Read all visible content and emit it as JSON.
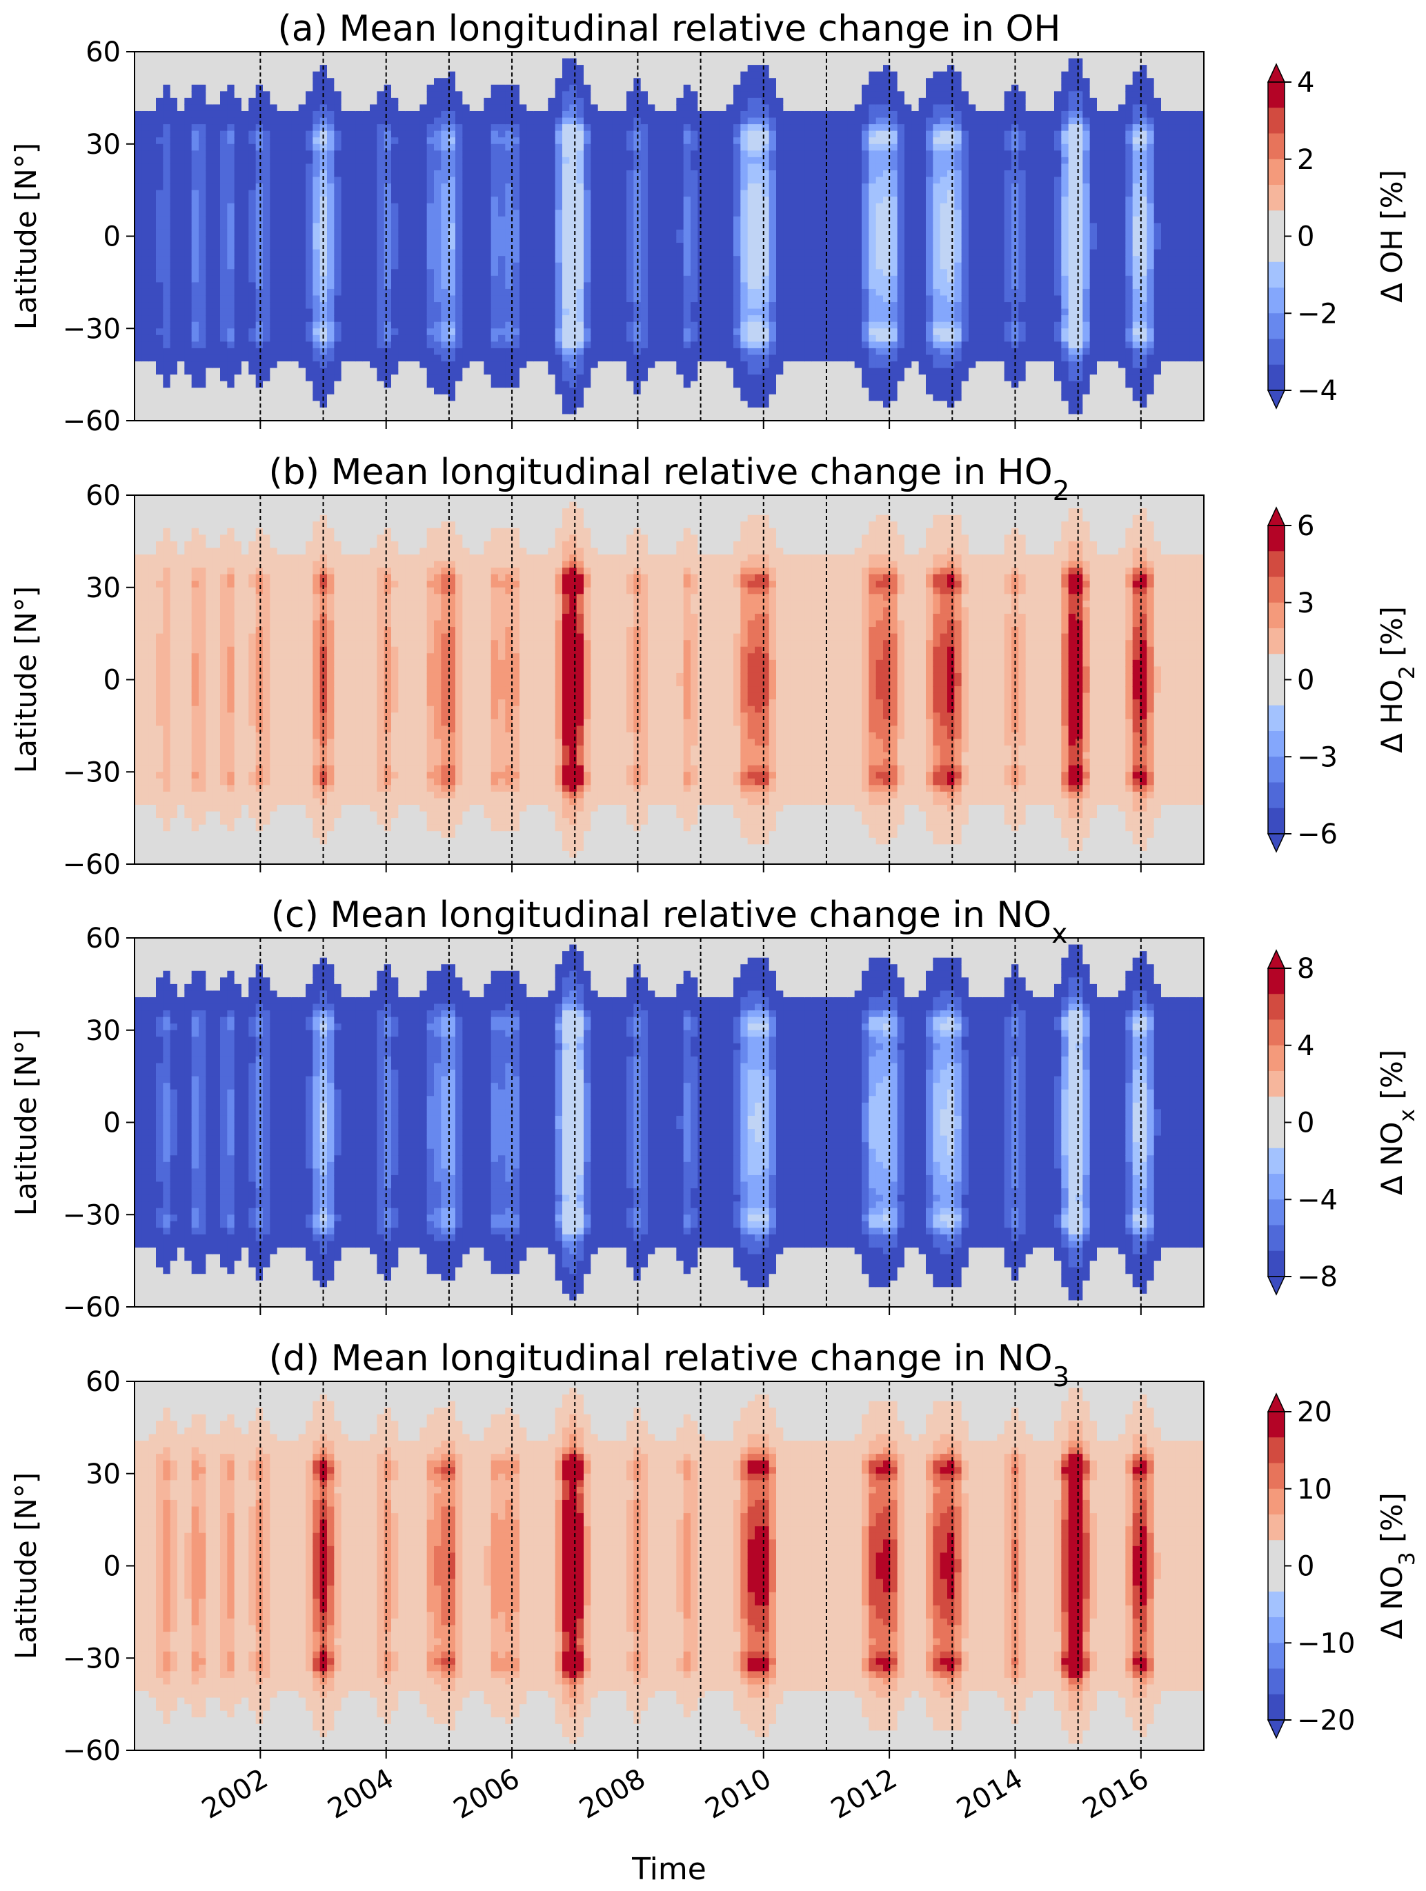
{
  "figure": {
    "xlabel": "Time",
    "x_tick_labels": [
      "2002",
      "2004",
      "2006",
      "2008",
      "2010",
      "2012",
      "2014",
      "2016"
    ],
    "x_tick_values": [
      2002,
      2004,
      2006,
      2008,
      2010,
      2012,
      2014,
      2016
    ],
    "x_range": [
      2000.0,
      2017.0
    ],
    "dashed_line_years": [
      2002,
      2003,
      2004,
      2005,
      2006,
      2007,
      2008,
      2009,
      2010,
      2011,
      2012,
      2013,
      2014,
      2015,
      2016
    ],
    "background_color": "#dcdcdc"
  },
  "chart_data": [
    {
      "type": "heatmap",
      "panel": "a",
      "title_main": "(a) Mean longitudinal relative change in OH",
      "title_sub": "",
      "ylabel": "Latitude [N°]",
      "y_ticks": [
        60,
        30,
        0,
        -30,
        -60
      ],
      "y_tick_labels": [
        "60",
        "30",
        "0",
        "−30",
        "−60"
      ],
      "ylim": [
        -60,
        60
      ],
      "colorbar": {
        "label_main": "Δ OH [%]",
        "label_sub": "",
        "range": [
          -4,
          4
        ],
        "ticks": [
          4,
          2,
          0,
          -2,
          -4
        ],
        "tick_labels": [
          "4",
          "2",
          "0",
          "−2",
          "−4"
        ],
        "extend": "both"
      },
      "sign": -1,
      "peak_value": -4,
      "event_years": [
        2000.5,
        2001.0,
        2001.5,
        2002.0,
        2003.0,
        2004.0,
        2004.75,
        2005.0,
        2005.75,
        2006.0,
        2006.9,
        2007.0,
        2008.0,
        2008.8,
        2009.75,
        2010.0,
        2011.75,
        2012.0,
        2012.75,
        2013.0,
        2014.0,
        2014.9,
        2015.0,
        2016.0
      ],
      "event_strength": [
        0.3,
        0.4,
        0.35,
        0.4,
        0.95,
        0.4,
        0.35,
        0.7,
        0.35,
        0.4,
        0.85,
        1.0,
        0.45,
        0.35,
        0.85,
        0.9,
        0.75,
        0.85,
        0.7,
        0.9,
        0.4,
        0.85,
        0.85,
        1.0
      ]
    },
    {
      "type": "heatmap",
      "panel": "b",
      "title_main": "(b) Mean longitudinal relative change in HO",
      "title_sub": "2",
      "ylabel": "Latitude [N°]",
      "y_ticks": [
        60,
        30,
        0,
        -30,
        -60
      ],
      "y_tick_labels": [
        "60",
        "30",
        "0",
        "−30",
        "−60"
      ],
      "ylim": [
        -60,
        60
      ],
      "colorbar": {
        "label_main": "Δ HO",
        "label_sub": "2",
        "label_tail": " [%]",
        "range": [
          -6,
          6
        ],
        "ticks": [
          6,
          3,
          0,
          -3,
          -6
        ],
        "tick_labels": [
          "6",
          "3",
          "0",
          "−3",
          "−6"
        ],
        "extend": "both"
      },
      "sign": 1,
      "peak_value": 6,
      "event_years": [
        2000.5,
        2001.0,
        2001.5,
        2002.0,
        2003.0,
        2004.0,
        2004.75,
        2005.0,
        2005.75,
        2006.0,
        2006.9,
        2007.0,
        2008.0,
        2008.8,
        2009.75,
        2010.0,
        2011.75,
        2012.0,
        2012.75,
        2013.0,
        2014.0,
        2014.9,
        2015.0,
        2016.0
      ],
      "event_strength": [
        0.3,
        0.35,
        0.35,
        0.4,
        0.7,
        0.4,
        0.35,
        0.65,
        0.35,
        0.4,
        0.7,
        1.0,
        0.4,
        0.35,
        0.6,
        0.7,
        0.6,
        0.7,
        0.6,
        0.85,
        0.4,
        0.7,
        0.75,
        1.0
      ]
    },
    {
      "type": "heatmap",
      "panel": "c",
      "title_main": "(c) Mean longitudinal relative change in NO",
      "title_sub": "x",
      "ylabel": "Latitude [N°]",
      "y_ticks": [
        60,
        30,
        0,
        -30,
        -60
      ],
      "y_tick_labels": [
        "60",
        "30",
        "0",
        "−30",
        "−60"
      ],
      "ylim": [
        -60,
        60
      ],
      "colorbar": {
        "label_main": "Δ NO",
        "label_sub": "x",
        "label_tail": " [%]",
        "range": [
          -8,
          8
        ],
        "ticks": [
          8,
          4,
          0,
          -4,
          -8
        ],
        "tick_labels": [
          "8",
          "4",
          "0",
          "−4",
          "−8"
        ],
        "extend": "both"
      },
      "sign": -1,
      "peak_value": -8,
      "event_years": [
        2000.5,
        2001.0,
        2001.5,
        2002.0,
        2003.0,
        2004.0,
        2004.75,
        2005.0,
        2005.75,
        2006.0,
        2006.9,
        2007.0,
        2008.0,
        2008.8,
        2009.75,
        2010.0,
        2011.75,
        2012.0,
        2012.75,
        2013.0,
        2014.0,
        2014.9,
        2015.0,
        2016.0
      ],
      "event_strength": [
        0.35,
        0.4,
        0.35,
        0.45,
        0.85,
        0.45,
        0.35,
        0.65,
        0.35,
        0.45,
        0.8,
        1.0,
        0.45,
        0.35,
        0.7,
        0.8,
        0.65,
        0.75,
        0.65,
        0.85,
        0.45,
        0.8,
        0.85,
        1.0
      ]
    },
    {
      "type": "heatmap",
      "panel": "d",
      "title_main": "(d) Mean longitudinal relative change in NO",
      "title_sub": "3",
      "ylabel": "Latitude [N°]",
      "y_ticks": [
        60,
        30,
        0,
        -30,
        -60
      ],
      "y_tick_labels": [
        "60",
        "30",
        "0",
        "−30",
        "−60"
      ],
      "ylim": [
        -60,
        60
      ],
      "colorbar": {
        "label_main": "Δ NO",
        "label_sub": "3",
        "label_tail": " [%]",
        "range": [
          -20,
          20
        ],
        "ticks": [
          20,
          10,
          0,
          -10,
          -20
        ],
        "tick_labels": [
          "20",
          "10",
          "0",
          "−10",
          "−20"
        ],
        "extend": "both"
      },
      "sign": 1,
      "peak_value": 20,
      "event_years": [
        2000.5,
        2001.0,
        2001.5,
        2002.0,
        2003.0,
        2004.0,
        2004.75,
        2005.0,
        2005.75,
        2006.0,
        2006.9,
        2007.0,
        2008.0,
        2008.8,
        2009.75,
        2010.0,
        2011.75,
        2012.0,
        2012.75,
        2013.0,
        2014.0,
        2014.9,
        2015.0,
        2016.0
      ],
      "event_strength": [
        0.45,
        0.45,
        0.4,
        0.45,
        1.0,
        0.45,
        0.4,
        0.7,
        0.4,
        0.45,
        0.75,
        1.0,
        0.45,
        0.4,
        0.65,
        0.95,
        0.7,
        0.8,
        0.65,
        0.85,
        0.5,
        0.85,
        0.95,
        1.0
      ]
    }
  ]
}
